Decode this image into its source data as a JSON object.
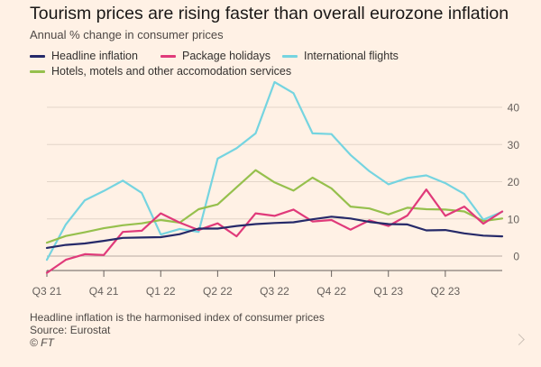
{
  "title": "Tourism prices are rising faster than overall eurozone inflation",
  "subtitle": "Annual % change in consumer prices",
  "footer": {
    "note": "Headline inflation is the harmonised index of consumer prices",
    "source": "Source: Eurostat",
    "copyright": "© FT"
  },
  "chart_data": {
    "type": "line",
    "x_labels": [
      "Q3 21",
      "Q4 21",
      "Q1 22",
      "Q2 22",
      "Q3 22",
      "Q4 22",
      "Q1 23",
      "Q2 23"
    ],
    "x_months": [
      "Jul 2021",
      "Aug 2021",
      "Sep 2021",
      "Oct 2021",
      "Nov 2021",
      "Dec 2021",
      "Jan 2022",
      "Feb 2022",
      "Mar 2022",
      "Apr 2022",
      "May 2022",
      "Jun 2022",
      "Jul 2022",
      "Aug 2022",
      "Sep 2022",
      "Oct 2022",
      "Nov 2022",
      "Dec 2022",
      "Jan 2023",
      "Feb 2023",
      "Mar 2023",
      "Apr 2023",
      "May 2023",
      "Jun 2023",
      "Jul 2023"
    ],
    "y_ticks": [
      0,
      10,
      20,
      30,
      40
    ],
    "ylim": [
      -5,
      47
    ],
    "grid": true,
    "legend_position": "top",
    "series": [
      {
        "name": "Headline inflation",
        "color": "#262a69",
        "values": [
          2.2,
          3.0,
          3.4,
          4.1,
          4.9,
          5.0,
          5.1,
          5.9,
          7.4,
          7.4,
          8.1,
          8.6,
          8.9,
          9.1,
          9.9,
          10.6,
          10.1,
          9.2,
          8.6,
          8.5,
          6.9,
          7.0,
          6.1,
          5.5,
          5.3
        ]
      },
      {
        "name": "Package holidays",
        "color": "#e03a7a",
        "values": [
          -4.5,
          -1.0,
          0.5,
          0.3,
          6.5,
          6.8,
          11.5,
          9.0,
          7.0,
          8.8,
          5.3,
          11.5,
          10.8,
          12.5,
          9.3,
          9.7,
          7.1,
          9.6,
          8.1,
          10.9,
          17.9,
          10.8,
          13.3,
          8.7,
          12.0
        ]
      },
      {
        "name": "International flights",
        "color": "#75d4e0",
        "values": [
          -1.0,
          8.5,
          15.0,
          17.5,
          20.3,
          17.0,
          5.8,
          7.3,
          6.5,
          26.2,
          29.0,
          33.0,
          46.8,
          43.8,
          33.0,
          32.8,
          27.2,
          22.8,
          19.3,
          21.0,
          21.7,
          19.6,
          16.7,
          9.8,
          11.9
        ]
      },
      {
        "name": "Hotels, motels and other accomodation services",
        "color": "#96c04d",
        "values": [
          3.6,
          5.4,
          6.4,
          7.5,
          8.3,
          8.8,
          9.7,
          9.0,
          12.6,
          13.9,
          18.5,
          23.1,
          19.8,
          17.6,
          21.1,
          18.2,
          13.3,
          12.8,
          11.2,
          13.0,
          12.6,
          12.5,
          12.0,
          9.4,
          10.1
        ]
      }
    ]
  }
}
